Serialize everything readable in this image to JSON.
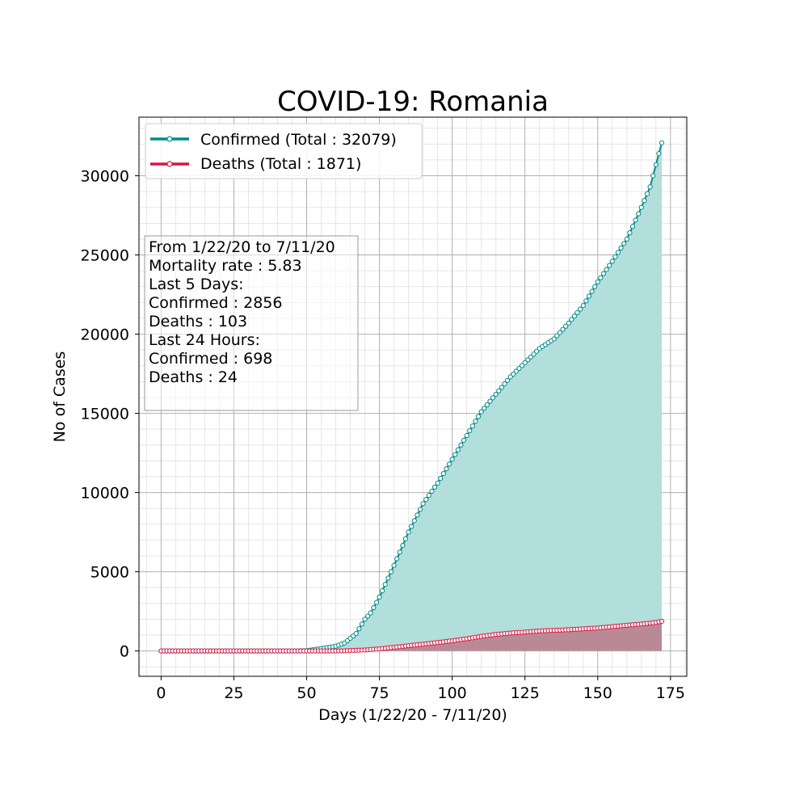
{
  "chart_data": {
    "type": "line",
    "title": "COVID-19: Romania",
    "xlabel": "Days (1/22/20 - 7/11/20)",
    "ylabel": "No of Cases",
    "xlim": [
      -7.6,
      180.6
    ],
    "ylim": [
      -1600,
      33700
    ],
    "x_ticks": [
      0,
      25,
      50,
      75,
      100,
      125,
      150,
      175
    ],
    "y_ticks": [
      0,
      5000,
      10000,
      15000,
      20000,
      25000,
      30000
    ],
    "grid": true,
    "legend_position": "upper-left",
    "colors": {
      "confirmed_line": "#008b8b",
      "confirmed_fill": "#b2dfdb",
      "deaths_line": "#dc143c",
      "deaths_fill": "#b98a96",
      "grid_major": "#b0b0b0",
      "grid_minor": "#e6e6e6"
    },
    "series": [
      {
        "name": "Confirmed (Total : 32079)",
        "key": "confirmed",
        "x_range": [
          0,
          172
        ],
        "anchors": [
          [
            0,
            0
          ],
          [
            35,
            0
          ],
          [
            45,
            3
          ],
          [
            50,
            20
          ],
          [
            55,
            150
          ],
          [
            60,
            300
          ],
          [
            63,
            500
          ],
          [
            65,
            800
          ],
          [
            67,
            1100
          ],
          [
            70,
            2000
          ],
          [
            72,
            2400
          ],
          [
            75,
            3400
          ],
          [
            80,
            5400
          ],
          [
            85,
            7500
          ],
          [
            90,
            9300
          ],
          [
            95,
            10600
          ],
          [
            100,
            12100
          ],
          [
            105,
            13600
          ],
          [
            110,
            15100
          ],
          [
            115,
            16200
          ],
          [
            120,
            17300
          ],
          [
            125,
            18200
          ],
          [
            130,
            19100
          ],
          [
            135,
            19700
          ],
          [
            140,
            20700
          ],
          [
            145,
            21800
          ],
          [
            150,
            23300
          ],
          [
            155,
            24600
          ],
          [
            160,
            26000
          ],
          [
            165,
            28000
          ],
          [
            168,
            29300
          ],
          [
            170,
            30700
          ],
          [
            171,
            31400
          ],
          [
            172,
            32079
          ]
        ]
      },
      {
        "name": "Deaths (Total : 1871)",
        "key": "deaths",
        "x_range": [
          0,
          172
        ],
        "anchors": [
          [
            0,
            0
          ],
          [
            60,
            0
          ],
          [
            63,
            10
          ],
          [
            65,
            30
          ],
          [
            70,
            60
          ],
          [
            75,
            130
          ],
          [
            80,
            230
          ],
          [
            85,
            330
          ],
          [
            90,
            430
          ],
          [
            95,
            530
          ],
          [
            100,
            640
          ],
          [
            105,
            770
          ],
          [
            110,
            920
          ],
          [
            115,
            1040
          ],
          [
            120,
            1130
          ],
          [
            125,
            1190
          ],
          [
            130,
            1260
          ],
          [
            140,
            1340
          ],
          [
            150,
            1450
          ],
          [
            160,
            1620
          ],
          [
            165,
            1700
          ],
          [
            170,
            1800
          ],
          [
            172,
            1871
          ]
        ]
      }
    ]
  },
  "info_box": {
    "lines": [
      "From 1/22/20 to 7/11/20",
      "Mortality rate : 5.83",
      "Last 5 Days:",
      "Confirmed : 2856",
      "Deaths : 103",
      "Last 24 Hours:",
      "Confirmed : 698",
      "Deaths : 24"
    ]
  }
}
